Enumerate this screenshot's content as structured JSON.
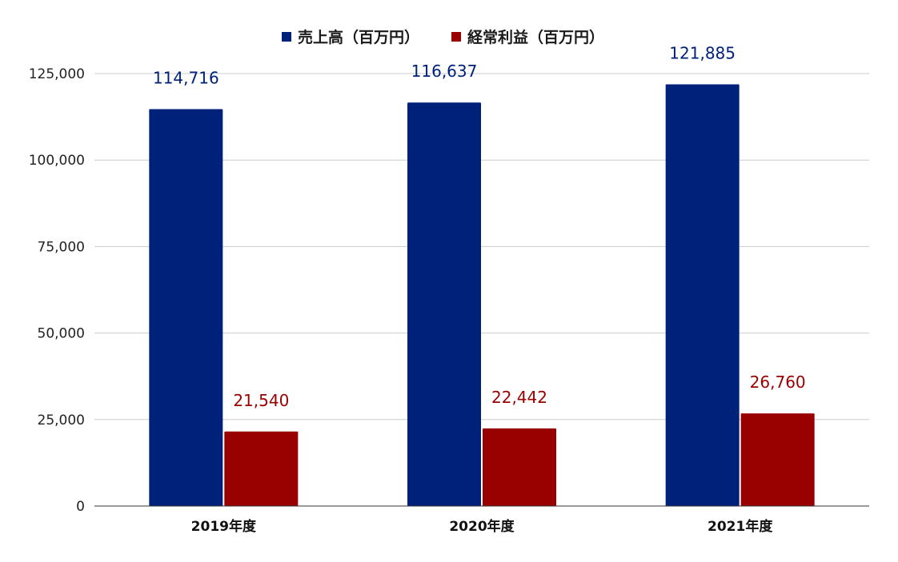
{
  "chart_data": {
    "type": "bar",
    "categories": [
      "2019年度",
      "2020年度",
      "2021年度"
    ],
    "series": [
      {
        "name": "売上高（百万円）",
        "values": [
          114716,
          116637,
          121885
        ],
        "labels": [
          "114,716",
          "116,637",
          "121,885"
        ],
        "color": "#00217a"
      },
      {
        "name": "経常利益（百万円）",
        "values": [
          21540,
          22442,
          26760
        ],
        "labels": [
          "21,540",
          "22,442",
          "26,760"
        ],
        "color": "#990000"
      }
    ],
    "ylim": [
      0,
      125000
    ],
    "yticks": [
      0,
      25000,
      50000,
      75000,
      100000,
      125000
    ],
    "ytick_labels": [
      "0",
      "25,000",
      "50,000",
      "75,000",
      "100,000",
      "125,000"
    ],
    "grid": true,
    "legend_position": "top",
    "title": "",
    "xlabel": "",
    "ylabel": ""
  }
}
